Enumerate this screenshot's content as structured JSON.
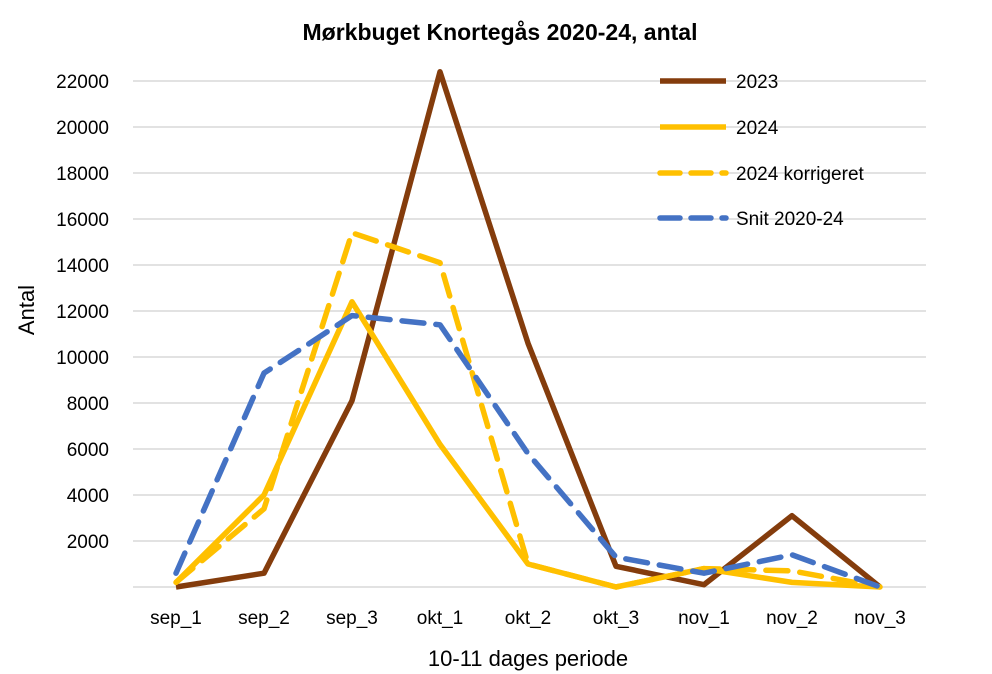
{
  "chart_data": {
    "type": "line",
    "title": "Mørkbuget Knortegås 2020-24, antal",
    "xlabel": "10-11 dages periode",
    "ylabel": "Antal",
    "categories": [
      "sep_1",
      "sep_2",
      "sep_3",
      "okt_1",
      "okt_2",
      "okt_3",
      "nov_1",
      "nov_2",
      "nov_3"
    ],
    "ylim": [
      0,
      22000
    ],
    "yticks": [
      "2000",
      "4000",
      "6000",
      "8000",
      "10000",
      "12000",
      "14000",
      "16000",
      "18000",
      "20000",
      "22000"
    ],
    "grid": true,
    "legend_position": "top-right",
    "series": [
      {
        "name": "2023",
        "color": "#843c0c",
        "style": "solid",
        "values": [
          0,
          600,
          8100,
          22400,
          10600,
          900,
          100,
          3100,
          0
        ]
      },
      {
        "name": "2024",
        "color": "#ffc000",
        "style": "solid",
        "values": [
          200,
          4000,
          12400,
          6200,
          1000,
          0,
          800,
          200,
          0
        ]
      },
      {
        "name": "2024 korrigeret",
        "color": "#ffc000",
        "style": "dashed",
        "values": [
          200,
          3400,
          15400,
          14100,
          1000,
          0,
          800,
          700,
          0
        ]
      },
      {
        "name": "Snit 2020-24",
        "color": "#4472c4",
        "style": "dashed",
        "values": [
          600,
          9300,
          11800,
          11400,
          5800,
          1300,
          600,
          1400,
          0
        ]
      }
    ]
  }
}
